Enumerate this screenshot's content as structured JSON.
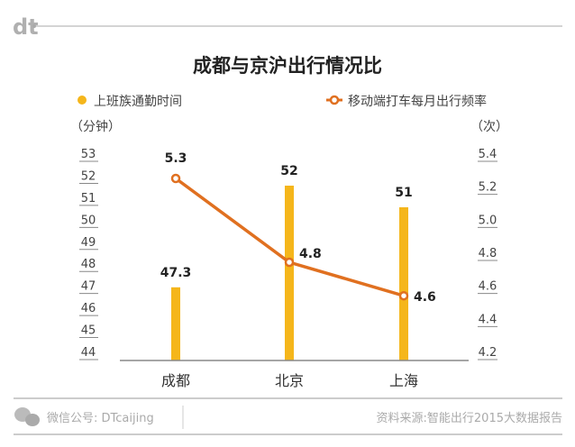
{
  "brand": {
    "logo": "dt"
  },
  "footer": {
    "wechat": "微信公号: DTcaijing",
    "source": "资料来源:智能出行2015大数据报告"
  },
  "chart_data": {
    "type": "bar+line",
    "title": "成都与京沪出行情况比",
    "categories": [
      "成都",
      "北京",
      "上海"
    ],
    "series": [
      {
        "name": "上班族通勤时间",
        "type": "bar",
        "axis": "left",
        "values": [
          47.3,
          52,
          51
        ],
        "labels": [
          "47.3",
          "52",
          "51"
        ],
        "color": "#F5B61B"
      },
      {
        "name": "移动端打车每月出行频率",
        "type": "line",
        "axis": "right",
        "values": [
          5.3,
          4.8,
          4.6
        ],
        "labels": [
          "5.3",
          "4.8",
          "4.6"
        ],
        "color": "#E07020"
      }
    ],
    "left_axis": {
      "unit": "（分钟）",
      "ticks": [
        "53",
        "52",
        "51",
        "50",
        "49",
        "48",
        "47",
        "46",
        "45",
        "44"
      ],
      "ylim": [
        44,
        53
      ]
    },
    "right_axis": {
      "unit": "（次）",
      "ticks": [
        "5.4",
        "5.2",
        "5.0",
        "4.8",
        "4.6",
        "4.4",
        "4.2"
      ],
      "ylim": [
        4.2,
        5.4
      ]
    },
    "legend": "top",
    "grid": false
  }
}
